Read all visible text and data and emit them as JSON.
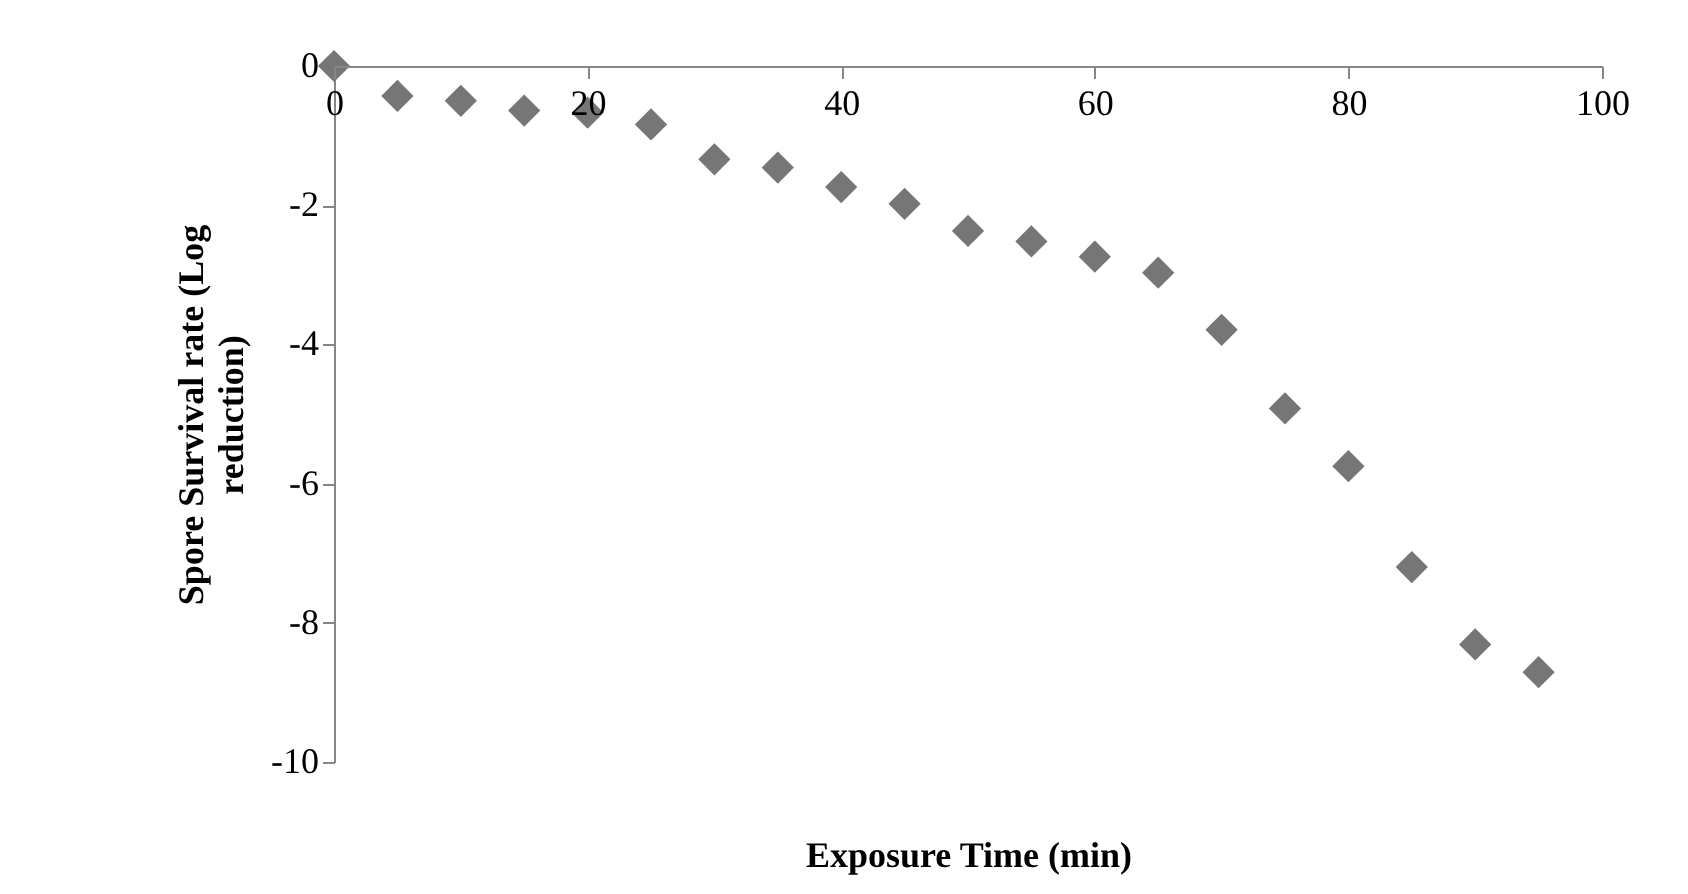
{
  "chart_data": {
    "type": "scatter",
    "xlabel": "Exposure Time (min)",
    "ylabel": "Spore Survival rate (Log reduction)",
    "x": [
      0,
      5,
      10,
      15,
      20,
      25,
      30,
      35,
      40,
      45,
      50,
      55,
      60,
      65,
      70,
      75,
      80,
      85,
      90,
      95
    ],
    "series": [
      {
        "color": "#767676",
        "values": [
          0,
          -0.43,
          -0.5,
          -0.64,
          -0.67,
          -0.84,
          -1.34,
          -1.46,
          -1.74,
          -1.98,
          -2.37,
          -2.52,
          -2.74,
          -2.97,
          -3.79,
          -4.92,
          -5.75,
          -7.2,
          -8.31,
          -8.71
        ]
      }
    ],
    "xlim": [
      0,
      100
    ],
    "xticks": [
      0,
      20,
      40,
      60,
      80,
      100
    ],
    "ylim": [
      -10,
      0
    ],
    "yticks": [
      -10,
      -8,
      -6,
      -4,
      -2,
      0
    ],
    "marker": "diamond",
    "grid": false
  }
}
